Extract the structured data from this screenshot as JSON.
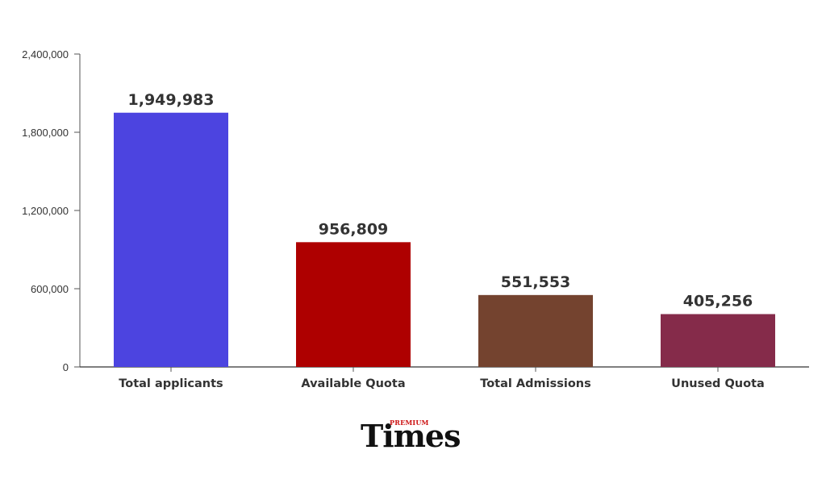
{
  "logo": {
    "premium": "PREMIUM",
    "word": "Times"
  },
  "chart_data": {
    "type": "bar",
    "title": "",
    "xlabel": "",
    "ylabel": "",
    "ylim": [
      0,
      2400000
    ],
    "yticks": [
      0,
      600000,
      1200000,
      1800000,
      2400000
    ],
    "ytick_labels": [
      "0",
      "600,000",
      "1,200,000",
      "1,800,000",
      "2,400,000"
    ],
    "categories": [
      "Total applicants",
      "Available Quota",
      "Total Admissions",
      "Unused Quota"
    ],
    "values": [
      1949983,
      956809,
      551553,
      405256
    ],
    "data_labels": [
      "1,949,983",
      "956,809",
      "551,553",
      "405,256"
    ],
    "colors": [
      "#4c44e0",
      "#ae0000",
      "#74432f",
      "#852b4a"
    ],
    "grid": false,
    "legend": "none"
  }
}
